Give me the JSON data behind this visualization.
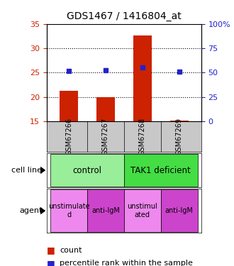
{
  "title": "GDS1467 / 1416804_at",
  "samples": [
    "GSM67266",
    "GSM67267",
    "GSM67268",
    "GSM67269"
  ],
  "count_values": [
    21.3,
    20.0,
    32.7,
    15.1
  ],
  "percentile_values": [
    52.0,
    52.5,
    55.0,
    51.0
  ],
  "ylim_left": [
    15,
    35
  ],
  "ylim_right": [
    0,
    100
  ],
  "yticks_left": [
    15,
    20,
    25,
    30,
    35
  ],
  "yticks_right": [
    0,
    25,
    50,
    75,
    100
  ],
  "ytick_labels_right": [
    "0",
    "25",
    "50",
    "75",
    "100%"
  ],
  "bar_color": "#cc2200",
  "dot_color": "#2222cc",
  "bar_width": 0.5,
  "cell_line_labels": [
    "control",
    "TAK1 deficient"
  ],
  "cell_line_spans": [
    [
      0,
      2
    ],
    [
      2,
      4
    ]
  ],
  "cell_line_colors": [
    "#99ee99",
    "#44dd44"
  ],
  "agent_labels": [
    "unstimulate\nd",
    "anti-IgM",
    "unstimul\nated",
    "anti-IgM"
  ],
  "agent_colors": [
    "#ee88ee",
    "#cc44cc",
    "#ee88ee",
    "#cc44cc"
  ],
  "legend_count_label": "count",
  "legend_percentile_label": "percentile rank within the sample",
  "sample_bg": "#c8c8c8",
  "fig_bg": "#ffffff"
}
